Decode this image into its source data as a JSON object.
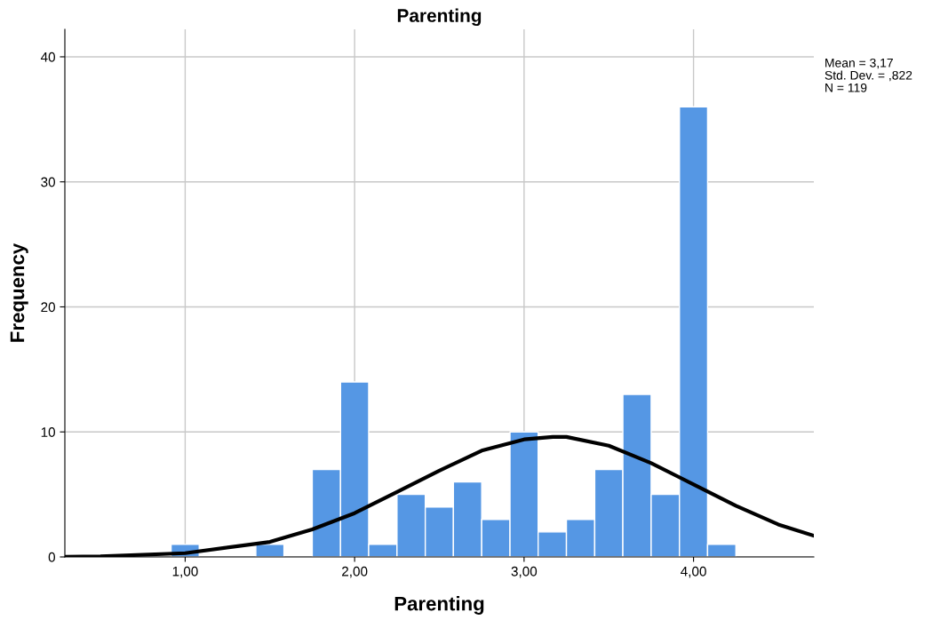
{
  "chart_data": {
    "type": "histogram",
    "title": "Parenting",
    "xlabel": "Parenting",
    "ylabel": "Frequency",
    "bins": [
      0.917,
      1.083,
      1.25,
      1.417,
      1.583,
      1.75,
      1.917,
      2.083,
      2.25,
      2.417,
      2.583,
      2.75,
      2.917,
      3.083,
      3.25,
      3.417,
      3.583,
      3.75,
      3.917,
      4.083,
      4.25
    ],
    "values": [
      1,
      0,
      0,
      1,
      0,
      7,
      14,
      1,
      5,
      4,
      6,
      3,
      10,
      2,
      3,
      7,
      13,
      5,
      36,
      1
    ],
    "color": "#5597e4",
    "series": [
      {
        "type": "line",
        "color": "#000000",
        "x": [
          0.29,
          0.5,
          1.0,
          1.5,
          1.75,
          2.0,
          2.25,
          2.5,
          2.75,
          3.0,
          3.17,
          3.25,
          3.5,
          3.75,
          4.0,
          4.25,
          4.5,
          4.71
        ],
        "values": [
          0.02,
          0.05,
          0.3,
          1.2,
          2.2,
          3.5,
          5.2,
          6.9,
          8.5,
          9.4,
          9.6,
          9.6,
          8.9,
          7.5,
          5.8,
          4.1,
          2.6,
          1.7
        ]
      }
    ],
    "xlim": [
      0.29,
      4.71
    ],
    "ylim": [
      0,
      42.2
    ],
    "xticks": [
      {
        "value": 1,
        "label": "1,00"
      },
      {
        "value": 2,
        "label": "2,00"
      },
      {
        "value": 3,
        "label": "3,00"
      },
      {
        "value": 4,
        "label": "4,00"
      }
    ],
    "yticks": [
      0,
      10,
      20,
      30,
      40
    ],
    "grid": true,
    "annotations": [
      "Mean = 3,17",
      "Std. Dev. = ,822",
      "N = 119"
    ]
  }
}
